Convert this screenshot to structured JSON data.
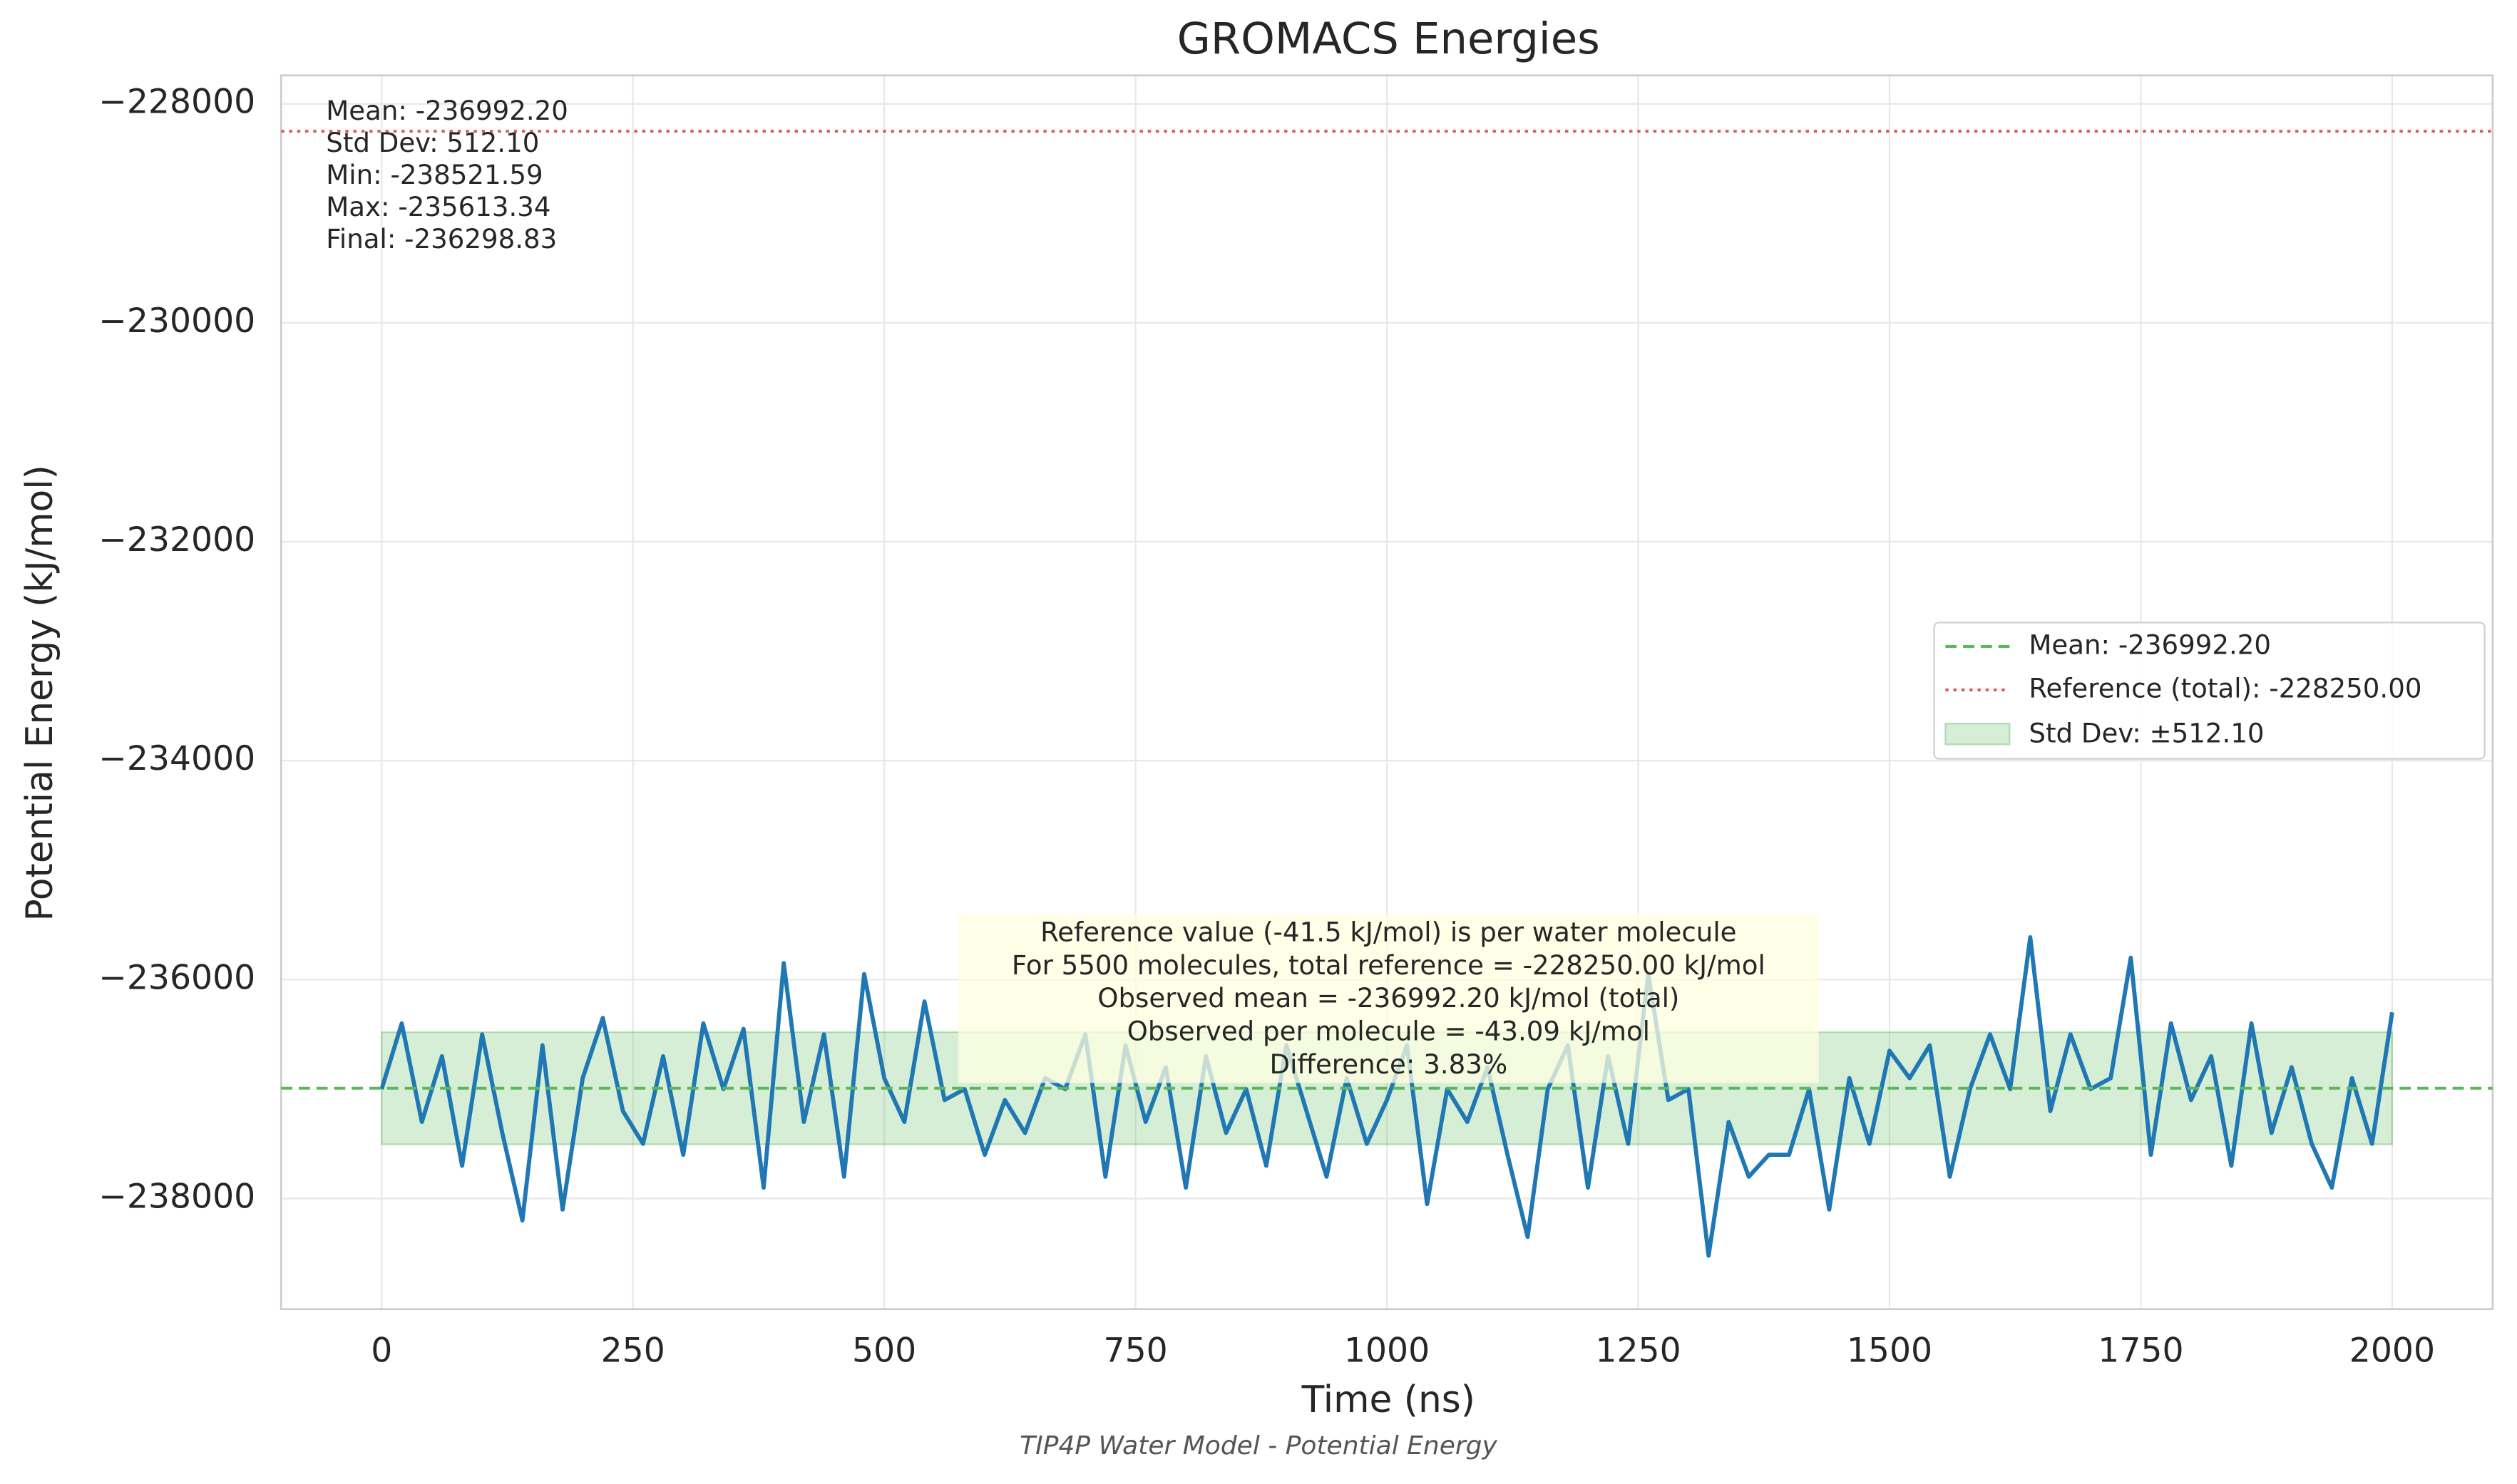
{
  "chart_data": {
    "type": "line",
    "title": "GROMACS Energies",
    "subtitle": "TIP4P Water Model - Potential Energy",
    "xlabel": "Time (ns)",
    "ylabel": "Potential Energy (kJ/mol)",
    "x": [
      0,
      20,
      40,
      60,
      80,
      100,
      120,
      140,
      160,
      180,
      200,
      220,
      240,
      260,
      280,
      300,
      320,
      340,
      360,
      380,
      400,
      420,
      440,
      460,
      480,
      500,
      520,
      540,
      560,
      580,
      600,
      620,
      640,
      660,
      680,
      700,
      720,
      740,
      760,
      780,
      800,
      820,
      840,
      860,
      880,
      900,
      920,
      940,
      960,
      980,
      1000,
      1020,
      1040,
      1060,
      1080,
      1100,
      1120,
      1140,
      1160,
      1180,
      1200,
      1220,
      1240,
      1260,
      1280,
      1300,
      1320,
      1340,
      1360,
      1380,
      1400,
      1420,
      1440,
      1460,
      1480,
      1500,
      1520,
      1540,
      1560,
      1580,
      1600,
      1620,
      1640,
      1660,
      1680,
      1700,
      1720,
      1740,
      1760,
      1780,
      1800,
      1820,
      1840,
      1860,
      1880,
      1900,
      1920,
      1940,
      1960,
      1980,
      2000
    ],
    "series": [
      {
        "color": "#1f77b4",
        "values": [
          -237000,
          -236400,
          -237300,
          -236700,
          -237700,
          -236500,
          -237400,
          -238200,
          -236600,
          -238100,
          -236900,
          -236350,
          -237200,
          -237500,
          -236700,
          -237600,
          -236400,
          -237000,
          -236450,
          -237900,
          -235850,
          -237300,
          -236500,
          -237800,
          -235950,
          -236900,
          -237300,
          -236200,
          -237100,
          -237000,
          -237600,
          -237100,
          -237400,
          -236900,
          -237000,
          -236500,
          -237800,
          -236600,
          -237300,
          -236800,
          -237900,
          -236700,
          -237400,
          -237000,
          -237700,
          -236600,
          -237200,
          -237800,
          -236900,
          -237500,
          -237100,
          -236600,
          -238050,
          -237000,
          -237300,
          -236800,
          -237600,
          -238350,
          -237000,
          -236600,
          -237900,
          -236700,
          -237500,
          -235950,
          -237100,
          -237000,
          -238521.59,
          -237300,
          -237800,
          -237600,
          -237600,
          -237000,
          -238100,
          -236900,
          -237500,
          -236650,
          -236900,
          -236600,
          -237800,
          -237000,
          -236500,
          -237000,
          -235613.34,
          -237200,
          -236500,
          -237000,
          -236900,
          -235800,
          -237600,
          -236400,
          -237100,
          -236700,
          -237700,
          -236400,
          -237400,
          -236800,
          -237500,
          -237900,
          -236900,
          -237500,
          -236298.83
        ]
      }
    ],
    "mean_line": {
      "label": "Mean: -236992.20",
      "value": -236992.2,
      "color": "#5cb85c"
    },
    "reference_line": {
      "label": "Reference (total): -228250.00",
      "value": -228250,
      "color": "#e05a5a"
    },
    "std_band": {
      "label": "Std Dev: ±512.10",
      "center": -236992.2,
      "half_width": 512.1,
      "color": "#5cb85c"
    },
    "stats_text": [
      "Mean: -236992.20",
      "Std Dev: 512.10",
      "Min: -238521.59",
      "Max: -235613.34",
      "Final: -236298.83"
    ],
    "annotation": [
      "Reference value (-41.5 kJ/mol) is per water molecule",
      "For 5500 molecules, total reference = -228250.00 kJ/mol",
      "Observed mean = -236992.20 kJ/mol (total)",
      "Observed per molecule = -43.09 kJ/mol",
      "Difference: 3.83%"
    ],
    "xlim": [
      -100,
      2100
    ],
    "ylim": [
      -239010,
      -227740
    ],
    "xticks": [
      0,
      250,
      500,
      750,
      1000,
      1250,
      1500,
      1750,
      2000
    ],
    "yticks": [
      {
        "value": -238000,
        "label": "−238000"
      },
      {
        "value": -236000,
        "label": "−236000"
      },
      {
        "value": -234000,
        "label": "−234000"
      },
      {
        "value": -232000,
        "label": "−232000"
      },
      {
        "value": -230000,
        "label": "−230000"
      },
      {
        "value": -228000,
        "label": "−228000"
      }
    ],
    "grid": true,
    "legend": "center right"
  }
}
